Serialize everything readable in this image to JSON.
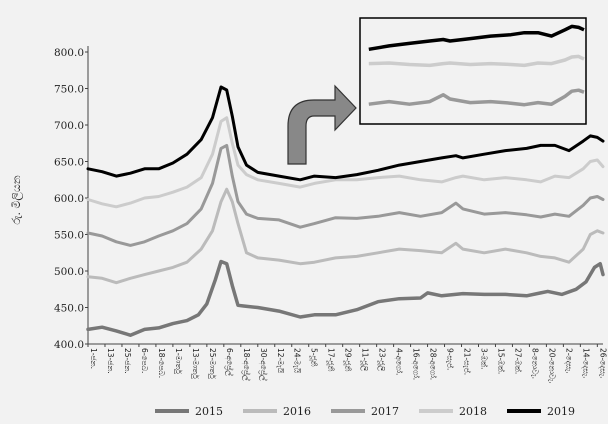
{
  "chart_data": {
    "type": "line",
    "ylabel": "රු. මිලියන",
    "ylim": [
      400,
      800
    ],
    "yticks": [
      "400.0",
      "450.0",
      "500.0",
      "550.0",
      "600.0",
      "650.0",
      "700.0",
      "750.0",
      "800.0"
    ],
    "ytick_values": [
      400,
      450,
      500,
      550,
      600,
      650,
      700,
      750,
      800
    ],
    "x_tick_labels": [
      "1-ජන.",
      "13-ජන.",
      "25-ජන.",
      "6-පෙබ.",
      "18-පෙබ.",
      "1-මාර්තු",
      "13-මාර්තු",
      "25-මාර්තු",
      "6-අප්‍රේල්",
      "18-අප්‍රේල්",
      "30-අප්‍රේල්",
      "12-මැයි",
      "24-මැයි",
      "5-ජූනි",
      "17-ජූනි",
      "29-ජූනි",
      "11-ජූලි",
      "23-ජූලි",
      "4-අගෝ.",
      "16-අගෝ.",
      "28-අගෝ.",
      "9-සැප්.",
      "21-සැප්.",
      "3-ඔක්.",
      "15-ඔක්.",
      "27-ඔක්.",
      "8-නොවැ.",
      "20-නොවැ.",
      "2-දෙසැ.",
      "14-දෙසැ.",
      "26-දෙසැ."
    ],
    "x_weeks": [
      0,
      12,
      24,
      36,
      48,
      60,
      72,
      84,
      96,
      108,
      120,
      132,
      144,
      156,
      168,
      180,
      192,
      204,
      216,
      228,
      240,
      252,
      264,
      276,
      288,
      300,
      312,
      324,
      336,
      348,
      360
    ],
    "series": [
      {
        "name": "2015",
        "color": "#777777",
        "width": 3.5,
        "x": [
          0,
          10,
          20,
          30,
          40,
          50,
          60,
          70,
          78,
          84,
          90,
          94,
          98,
          102,
          106,
          110,
          120,
          135,
          150,
          160,
          175,
          190,
          205,
          220,
          235,
          240,
          250,
          265,
          280,
          295,
          310,
          320,
          325,
          335,
          345,
          352,
          358,
          362,
          364
        ],
        "y": [
          420,
          423,
          418,
          412,
          420,
          422,
          428,
          432,
          440,
          455,
          488,
          513,
          510,
          480,
          453,
          452,
          450,
          445,
          437,
          440,
          440,
          447,
          458,
          462,
          463,
          470,
          466,
          469,
          468,
          468,
          466,
          470,
          472,
          468,
          475,
          485,
          505,
          510,
          495
        ]
      },
      {
        "name": "2016",
        "color": "#bbbbbb",
        "width": 3,
        "x": [
          0,
          10,
          20,
          30,
          40,
          50,
          60,
          70,
          80,
          88,
          94,
          98,
          102,
          106,
          112,
          120,
          135,
          150,
          160,
          175,
          190,
          205,
          220,
          235,
          250,
          260,
          265,
          280,
          295,
          310,
          320,
          330,
          340,
          350,
          355,
          360,
          364
        ],
        "y": [
          492,
          490,
          484,
          490,
          495,
          500,
          505,
          512,
          530,
          555,
          595,
          612,
          595,
          565,
          525,
          518,
          515,
          510,
          512,
          518,
          520,
          525,
          530,
          528,
          525,
          538,
          530,
          525,
          530,
          525,
          520,
          518,
          512,
          530,
          550,
          555,
          552
        ]
      },
      {
        "name": "2017",
        "color": "#999999",
        "width": 3,
        "x": [
          0,
          10,
          20,
          30,
          40,
          50,
          60,
          70,
          80,
          88,
          94,
          98,
          102,
          106,
          112,
          120,
          135,
          150,
          160,
          175,
          190,
          205,
          220,
          235,
          250,
          260,
          265,
          280,
          295,
          310,
          320,
          330,
          340,
          350,
          355,
          360,
          364
        ],
        "y": [
          552,
          548,
          540,
          535,
          540,
          548,
          555,
          565,
          585,
          620,
          668,
          672,
          630,
          595,
          578,
          572,
          570,
          560,
          565,
          573,
          572,
          575,
          580,
          575,
          580,
          593,
          585,
          578,
          580,
          577,
          574,
          578,
          575,
          590,
          600,
          602,
          598
        ]
      },
      {
        "name": "2018",
        "color": "#cccccc",
        "width": 3,
        "x": [
          0,
          10,
          20,
          30,
          40,
          50,
          60,
          70,
          80,
          88,
          94,
          98,
          102,
          106,
          112,
          120,
          135,
          150,
          160,
          175,
          190,
          205,
          220,
          235,
          250,
          260,
          265,
          280,
          295,
          310,
          320,
          330,
          340,
          350,
          355,
          360,
          364
        ],
        "y": [
          598,
          592,
          588,
          593,
          600,
          602,
          608,
          615,
          628,
          660,
          705,
          710,
          675,
          645,
          632,
          625,
          620,
          615,
          620,
          625,
          625,
          628,
          630,
          625,
          622,
          628,
          630,
          625,
          628,
          625,
          622,
          630,
          628,
          640,
          650,
          652,
          643
        ]
      },
      {
        "name": "2019",
        "color": "#000000",
        "width": 3,
        "x": [
          0,
          10,
          20,
          30,
          40,
          50,
          60,
          70,
          80,
          88,
          94,
          98,
          102,
          106,
          112,
          120,
          135,
          150,
          160,
          175,
          190,
          205,
          220,
          235,
          250,
          260,
          265,
          280,
          295,
          310,
          320,
          330,
          340,
          350,
          355,
          360,
          364
        ],
        "y": [
          640,
          636,
          630,
          634,
          640,
          640,
          648,
          660,
          680,
          710,
          752,
          748,
          712,
          670,
          645,
          635,
          630,
          625,
          630,
          628,
          632,
          638,
          645,
          650,
          655,
          658,
          655,
          660,
          665,
          668,
          672,
          672,
          665,
          678,
          685,
          683,
          678
        ]
      }
    ],
    "legend": "bottom",
    "grid": false
  }
}
